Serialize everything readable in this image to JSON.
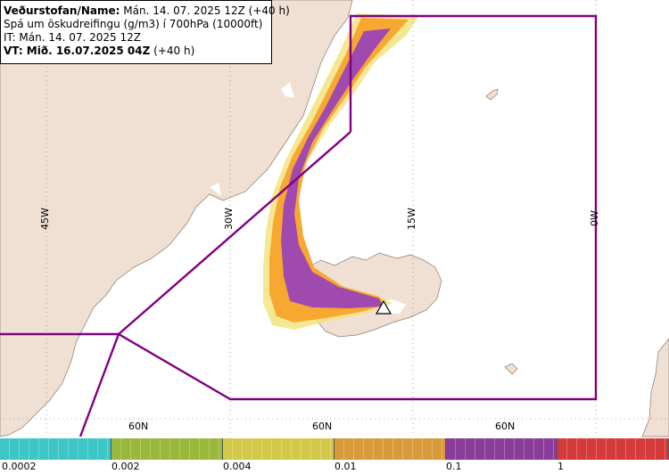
{
  "header": {
    "title_bold": "Veðurstofan/Name:",
    "title_rest": "Mán. 14. 07. 2025 12Z (+40 h)",
    "line2": "Spá um öskudreifingu (g/m3) í 700hPa (10000ft)",
    "line3": "IT: Mán. 14. 07. 2025 12Z",
    "line4_bold": "VT: Mið. 16.07.2025 04Z",
    "line4_rest": "(+40 h)"
  },
  "grid": {
    "lon_labels": [
      "45W",
      "30W",
      "15W",
      "0W"
    ],
    "lat_labels": [
      "60N",
      "60N",
      "60N"
    ]
  },
  "legend": {
    "colors": [
      "#3ec6c6",
      "#9ab83c",
      "#d4c84a",
      "#d99a3a",
      "#8a3c9a",
      "#d43a3a"
    ],
    "ticks": [
      "0.0002",
      "0.002",
      "0.004",
      "0.01",
      "0.1",
      "1"
    ]
  },
  "colors": {
    "land": "#efe0d3",
    "sea": "#ffffff",
    "boundary": "#800080",
    "ash_low": "#f7a830",
    "ash_mid": "#a04ab0",
    "ash_edge": "#f2e27a"
  }
}
